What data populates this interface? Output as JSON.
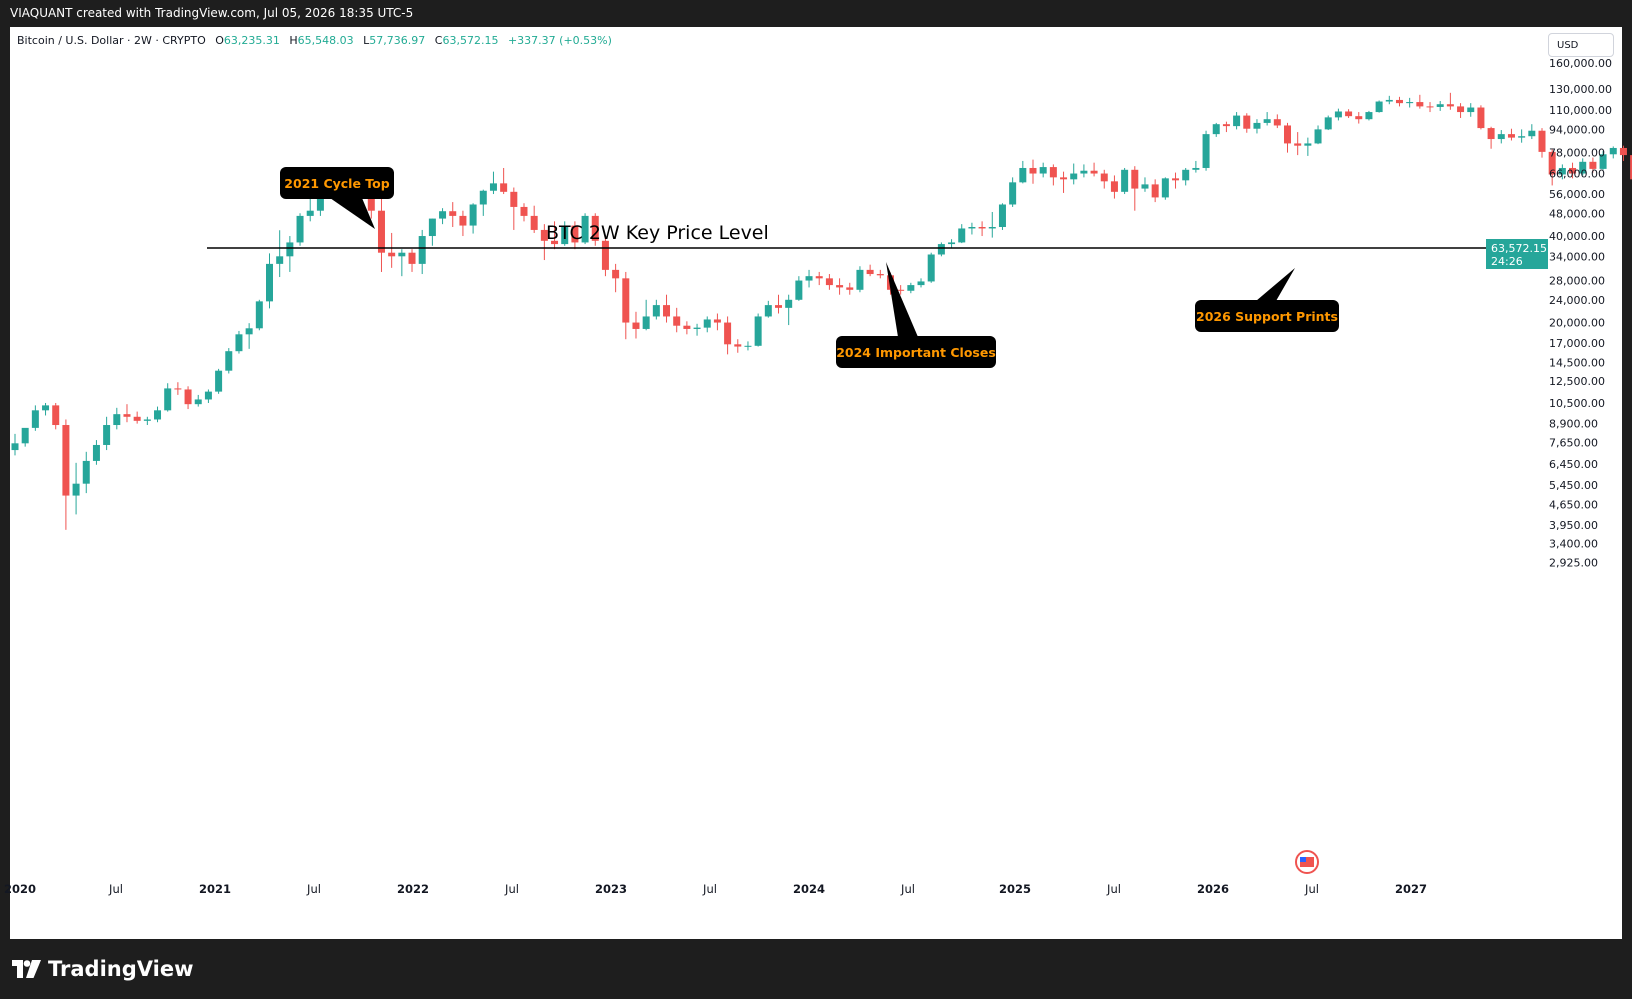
{
  "header": {
    "attribution": "VIAQUANT created with TradingView.com, Jul 05, 2026 18:35 UTC-5"
  },
  "legend": {
    "symbol": "Bitcoin / U.S. Dollar · 2W · CRYPTO",
    "o_label": "O",
    "o_value": "63,235.31",
    "h_label": "H",
    "h_value": "65,548.03",
    "l_label": "L",
    "l_value": "57,736.97",
    "c_label": "C",
    "c_value": "63,572.15",
    "change": "+337.37 (+0.53%)"
  },
  "currency": "USD",
  "price_axis": {
    "ticks": [
      "160,000.00",
      "130,000.00",
      "110,000.00",
      "94,000.00",
      "78,000.00",
      "66,000.00",
      "56,000.00",
      "48,000.00",
      "40,000.00",
      "34,000.00",
      "28,000.00",
      "24,000.00",
      "20,000.00",
      "17,000.00",
      "14,500.00",
      "12,500.00",
      "10,500.00",
      "8,900.00",
      "7,650.00",
      "6,450.00",
      "5,450.00",
      "4,650.00",
      "3,950.00",
      "3,400.00",
      "2,925.00"
    ],
    "last_price": "63,572.15",
    "countdown": "24:26"
  },
  "time_axis": {
    "ticks": [
      "2020",
      "Jul",
      "2021",
      "Jul",
      "2022",
      "Jul",
      "2023",
      "Jul",
      "2024",
      "Jul",
      "2025",
      "Jul",
      "2026",
      "Jul",
      "2027"
    ]
  },
  "annotations": {
    "key_level": "BTC 2W Key Price Level",
    "cycle_top": "2021 Cycle Top",
    "important_closes": "2024 Important Closes",
    "support_prints": "2026 Support Prints"
  },
  "colors": {
    "up": "#26a69a",
    "down": "#ef5350",
    "callout_bg": "#000000",
    "callout_text": "#ff9800",
    "price_tag": "#26a69a"
  },
  "brand": {
    "name": "TradingView"
  },
  "chart_data": {
    "type": "candlestick",
    "scale": "log",
    "x_unit": "two-week bars starting 2020-01-01",
    "key_level": 63000,
    "series": [
      {
        "o": 7200,
        "h": 8200,
        "l": 6900,
        "c": 7600
      },
      {
        "o": 7600,
        "h": 8500,
        "l": 7400,
        "c": 8600
      },
      {
        "o": 8600,
        "h": 10300,
        "l": 8400,
        "c": 9900
      },
      {
        "o": 9900,
        "h": 10500,
        "l": 9500,
        "c": 10300
      },
      {
        "o": 10300,
        "h": 10500,
        "l": 8500,
        "c": 8800
      },
      {
        "o": 8800,
        "h": 9200,
        "l": 3800,
        "c": 5000
      },
      {
        "o": 5000,
        "h": 6500,
        "l": 4300,
        "c": 5500
      },
      {
        "o": 5500,
        "h": 7100,
        "l": 5100,
        "c": 6600
      },
      {
        "o": 6600,
        "h": 7800,
        "l": 6400,
        "c": 7500
      },
      {
        "o": 7500,
        "h": 9400,
        "l": 7200,
        "c": 8800
      },
      {
        "o": 8800,
        "h": 10100,
        "l": 8500,
        "c": 9600
      },
      {
        "o": 9600,
        "h": 10400,
        "l": 9000,
        "c": 9400
      },
      {
        "o": 9400,
        "h": 9800,
        "l": 8900,
        "c": 9100
      },
      {
        "o": 9100,
        "h": 9400,
        "l": 8800,
        "c": 9200
      },
      {
        "o": 9200,
        "h": 10200,
        "l": 9000,
        "c": 9900
      },
      {
        "o": 9900,
        "h": 12300,
        "l": 9800,
        "c": 11800
      },
      {
        "o": 11800,
        "h": 12400,
        "l": 11200,
        "c": 11700
      },
      {
        "o": 11700,
        "h": 12000,
        "l": 10000,
        "c": 10400
      },
      {
        "o": 10400,
        "h": 11200,
        "l": 10200,
        "c": 10800
      },
      {
        "o": 10800,
        "h": 11700,
        "l": 10500,
        "c": 11500
      },
      {
        "o": 11500,
        "h": 13800,
        "l": 11300,
        "c": 13600
      },
      {
        "o": 13600,
        "h": 16300,
        "l": 13300,
        "c": 15900
      },
      {
        "o": 15900,
        "h": 18700,
        "l": 15600,
        "c": 18200
      },
      {
        "o": 18200,
        "h": 19900,
        "l": 16200,
        "c": 19100
      },
      {
        "o": 19100,
        "h": 24000,
        "l": 18800,
        "c": 23700
      },
      {
        "o": 23700,
        "h": 34800,
        "l": 22400,
        "c": 32000
      },
      {
        "o": 32000,
        "h": 41900,
        "l": 28800,
        "c": 34000
      },
      {
        "o": 34000,
        "h": 40000,
        "l": 30000,
        "c": 38000
      },
      {
        "o": 38000,
        "h": 48000,
        "l": 37000,
        "c": 47000
      },
      {
        "o": 47000,
        "h": 58300,
        "l": 45000,
        "c": 49000
      },
      {
        "o": 49000,
        "h": 58000,
        "l": 47000,
        "c": 57000
      },
      {
        "o": 57000,
        "h": 61700,
        "l": 54000,
        "c": 59000
      },
      {
        "o": 59000,
        "h": 61000,
        "l": 53000,
        "c": 56500
      },
      {
        "o": 56500,
        "h": 61000,
        "l": 55000,
        "c": 59000
      },
      {
        "o": 59000,
        "h": 64800,
        "l": 47000,
        "c": 57000
      },
      {
        "o": 57000,
        "h": 59000,
        "l": 46000,
        "c": 49000
      },
      {
        "o": 49000,
        "h": 59000,
        "l": 30000,
        "c": 35000
      },
      {
        "o": 35000,
        "h": 41000,
        "l": 31000,
        "c": 34000
      },
      {
        "o": 34000,
        "h": 36000,
        "l": 29000,
        "c": 35000
      },
      {
        "o": 35000,
        "h": 36000,
        "l": 30000,
        "c": 32000
      },
      {
        "o": 32000,
        "h": 42000,
        "l": 29500,
        "c": 40000
      },
      {
        "o": 40000,
        "h": 46000,
        "l": 37000,
        "c": 46000
      },
      {
        "o": 46000,
        "h": 50000,
        "l": 44000,
        "c": 48800
      },
      {
        "o": 48800,
        "h": 52500,
        "l": 43000,
        "c": 47000
      },
      {
        "o": 47000,
        "h": 49000,
        "l": 40000,
        "c": 43500
      },
      {
        "o": 43500,
        "h": 52000,
        "l": 40800,
        "c": 51500
      },
      {
        "o": 51500,
        "h": 58000,
        "l": 47000,
        "c": 57500
      },
      {
        "o": 57500,
        "h": 67000,
        "l": 56000,
        "c": 61000
      },
      {
        "o": 61000,
        "h": 69000,
        "l": 56000,
        "c": 57000
      },
      {
        "o": 57000,
        "h": 59000,
        "l": 42000,
        "c": 50500
      },
      {
        "o": 50500,
        "h": 52000,
        "l": 45000,
        "c": 47000
      },
      {
        "o": 47000,
        "h": 51000,
        "l": 41000,
        "c": 42000
      },
      {
        "o": 42000,
        "h": 44000,
        "l": 33000,
        "c": 38500
      },
      {
        "o": 38500,
        "h": 45000,
        "l": 36000,
        "c": 37500
      },
      {
        "o": 37500,
        "h": 45000,
        "l": 37000,
        "c": 43500
      },
      {
        "o": 43500,
        "h": 45000,
        "l": 36000,
        "c": 38000
      },
      {
        "o": 38000,
        "h": 48000,
        "l": 37500,
        "c": 47000
      },
      {
        "o": 47000,
        "h": 48000,
        "l": 37000,
        "c": 38500
      },
      {
        "o": 38500,
        "h": 40000,
        "l": 29000,
        "c": 30500
      },
      {
        "o": 30500,
        "h": 32000,
        "l": 25500,
        "c": 28500
      },
      {
        "o": 28500,
        "h": 30000,
        "l": 17500,
        "c": 20000
      },
      {
        "o": 20000,
        "h": 21800,
        "l": 17600,
        "c": 19000
      },
      {
        "o": 19000,
        "h": 24000,
        "l": 18800,
        "c": 21000
      },
      {
        "o": 21000,
        "h": 24000,
        "l": 20500,
        "c": 23000
      },
      {
        "o": 23000,
        "h": 25000,
        "l": 20000,
        "c": 21000
      },
      {
        "o": 21000,
        "h": 22500,
        "l": 18500,
        "c": 19500
      },
      {
        "o": 19500,
        "h": 20200,
        "l": 18200,
        "c": 19000
      },
      {
        "o": 19000,
        "h": 19800,
        "l": 18000,
        "c": 19200
      },
      {
        "o": 19200,
        "h": 21000,
        "l": 18500,
        "c": 20500
      },
      {
        "o": 20500,
        "h": 21500,
        "l": 18800,
        "c": 20000
      },
      {
        "o": 20000,
        "h": 21000,
        "l": 15500,
        "c": 16800
      },
      {
        "o": 16800,
        "h": 17500,
        "l": 15700,
        "c": 16500
      },
      {
        "o": 16500,
        "h": 17200,
        "l": 16000,
        "c": 16600
      },
      {
        "o": 16600,
        "h": 21500,
        "l": 16500,
        "c": 21000
      },
      {
        "o": 21000,
        "h": 23800,
        "l": 20800,
        "c": 23000
      },
      {
        "o": 23000,
        "h": 25000,
        "l": 21500,
        "c": 22500
      },
      {
        "o": 22500,
        "h": 25000,
        "l": 19600,
        "c": 24000
      },
      {
        "o": 24000,
        "h": 29000,
        "l": 23800,
        "c": 28000
      },
      {
        "o": 28000,
        "h": 30500,
        "l": 26500,
        "c": 29000
      },
      {
        "o": 29000,
        "h": 30000,
        "l": 27000,
        "c": 28500
      },
      {
        "o": 28500,
        "h": 29500,
        "l": 26000,
        "c": 27000
      },
      {
        "o": 27000,
        "h": 28500,
        "l": 25000,
        "c": 26500
      },
      {
        "o": 26500,
        "h": 27500,
        "l": 25000,
        "c": 26000
      },
      {
        "o": 26000,
        "h": 31400,
        "l": 25500,
        "c": 30500
      },
      {
        "o": 30500,
        "h": 31800,
        "l": 29000,
        "c": 29500
      },
      {
        "o": 29500,
        "h": 30500,
        "l": 28500,
        "c": 29200
      },
      {
        "o": 29200,
        "h": 29800,
        "l": 25000,
        "c": 26000
      },
      {
        "o": 26000,
        "h": 27000,
        "l": 25000,
        "c": 25800
      },
      {
        "o": 25800,
        "h": 27500,
        "l": 25300,
        "c": 27000
      },
      {
        "o": 27000,
        "h": 28500,
        "l": 26500,
        "c": 27800
      },
      {
        "o": 27800,
        "h": 35000,
        "l": 27500,
        "c": 34500
      },
      {
        "o": 34500,
        "h": 38000,
        "l": 34000,
        "c": 37500
      },
      {
        "o": 37500,
        "h": 39000,
        "l": 36500,
        "c": 38000
      },
      {
        "o": 38000,
        "h": 44000,
        "l": 37800,
        "c": 42500
      },
      {
        "o": 42500,
        "h": 44500,
        "l": 40500,
        "c": 43000
      },
      {
        "o": 43000,
        "h": 45000,
        "l": 40000,
        "c": 42500
      },
      {
        "o": 42500,
        "h": 48500,
        "l": 39500,
        "c": 43000
      },
      {
        "o": 43000,
        "h": 52000,
        "l": 42000,
        "c": 51500
      },
      {
        "o": 51500,
        "h": 64000,
        "l": 50500,
        "c": 61500
      },
      {
        "o": 61500,
        "h": 73000,
        "l": 61000,
        "c": 69000
      },
      {
        "o": 69000,
        "h": 73800,
        "l": 60800,
        "c": 66000
      },
      {
        "o": 66000,
        "h": 72000,
        "l": 64000,
        "c": 69500
      },
      {
        "o": 69500,
        "h": 71000,
        "l": 60000,
        "c": 64000
      },
      {
        "o": 64000,
        "h": 67000,
        "l": 56500,
        "c": 63000
      },
      {
        "o": 63000,
        "h": 71500,
        "l": 60500,
        "c": 66000
      },
      {
        "o": 66000,
        "h": 71000,
        "l": 64000,
        "c": 67500
      },
      {
        "o": 67500,
        "h": 72000,
        "l": 64500,
        "c": 66000
      },
      {
        "o": 66000,
        "h": 68000,
        "l": 58500,
        "c": 62000
      },
      {
        "o": 62000,
        "h": 65000,
        "l": 54000,
        "c": 57000
      },
      {
        "o": 57000,
        "h": 69000,
        "l": 56000,
        "c": 68000
      },
      {
        "o": 68000,
        "h": 70000,
        "l": 49000,
        "c": 58500
      },
      {
        "o": 58500,
        "h": 64000,
        "l": 57000,
        "c": 60500
      },
      {
        "o": 60500,
        "h": 63000,
        "l": 52500,
        "c": 54500
      },
      {
        "o": 54500,
        "h": 64000,
        "l": 53500,
        "c": 63500
      },
      {
        "o": 63500,
        "h": 66500,
        "l": 58500,
        "c": 62500
      },
      {
        "o": 62500,
        "h": 69000,
        "l": 60000,
        "c": 68000
      },
      {
        "o": 68000,
        "h": 73000,
        "l": 66500,
        "c": 69000
      },
      {
        "o": 69000,
        "h": 93000,
        "l": 67500,
        "c": 90500
      },
      {
        "o": 90500,
        "h": 99000,
        "l": 88500,
        "c": 98000
      },
      {
        "o": 98000,
        "h": 100000,
        "l": 92000,
        "c": 96500
      },
      {
        "o": 96500,
        "h": 108000,
        "l": 94000,
        "c": 105000
      },
      {
        "o": 105000,
        "h": 107000,
        "l": 91500,
        "c": 94500
      },
      {
        "o": 94500,
        "h": 102000,
        "l": 91000,
        "c": 99000
      },
      {
        "o": 99000,
        "h": 108000,
        "l": 97000,
        "c": 102000
      },
      {
        "o": 102000,
        "h": 106000,
        "l": 95000,
        "c": 97000
      },
      {
        "o": 97000,
        "h": 99000,
        "l": 78000,
        "c": 84000
      },
      {
        "o": 84000,
        "h": 92000,
        "l": 76500,
        "c": 82500
      },
      {
        "o": 82500,
        "h": 88000,
        "l": 76000,
        "c": 84000
      },
      {
        "o": 84000,
        "h": 97000,
        "l": 83500,
        "c": 94000
      },
      {
        "o": 94000,
        "h": 105000,
        "l": 93500,
        "c": 103500
      },
      {
        "o": 103500,
        "h": 111000,
        "l": 101000,
        "c": 108500
      },
      {
        "o": 108500,
        "h": 110500,
        "l": 103000,
        "c": 104500
      },
      {
        "o": 104500,
        "h": 108000,
        "l": 98500,
        "c": 102000
      },
      {
        "o": 102000,
        "h": 109000,
        "l": 101000,
        "c": 108000
      },
      {
        "o": 108000,
        "h": 118500,
        "l": 107500,
        "c": 117500
      },
      {
        "o": 117500,
        "h": 123000,
        "l": 115000,
        "c": 119000
      },
      {
        "o": 119000,
        "h": 122000,
        "l": 113000,
        "c": 116000
      },
      {
        "o": 116000,
        "h": 121000,
        "l": 112000,
        "c": 117000
      },
      {
        "o": 117000,
        "h": 124000,
        "l": 111000,
        "c": 113000
      },
      {
        "o": 113000,
        "h": 117000,
        "l": 108000,
        "c": 112500
      },
      {
        "o": 112500,
        "h": 118000,
        "l": 109000,
        "c": 115000
      },
      {
        "o": 115000,
        "h": 126000,
        "l": 110000,
        "c": 113000
      },
      {
        "o": 113000,
        "h": 116000,
        "l": 103000,
        "c": 108000
      },
      {
        "o": 108000,
        "h": 116000,
        "l": 104000,
        "c": 112000
      },
      {
        "o": 112000,
        "h": 114000,
        "l": 94000,
        "c": 95000
      },
      {
        "o": 95000,
        "h": 96000,
        "l": 80500,
        "c": 87000
      },
      {
        "o": 87000,
        "h": 93500,
        "l": 84000,
        "c": 90500
      },
      {
        "o": 90500,
        "h": 94500,
        "l": 86000,
        "c": 88000
      },
      {
        "o": 88000,
        "h": 94000,
        "l": 84500,
        "c": 89000
      },
      {
        "o": 89000,
        "h": 98000,
        "l": 87000,
        "c": 93000
      },
      {
        "o": 93000,
        "h": 95000,
        "l": 75000,
        "c": 78500
      },
      {
        "o": 78500,
        "h": 80000,
        "l": 60000,
        "c": 65500
      },
      {
        "o": 65500,
        "h": 71000,
        "l": 63000,
        "c": 69000
      },
      {
        "o": 69000,
        "h": 72000,
        "l": 63500,
        "c": 66000
      },
      {
        "o": 66000,
        "h": 74500,
        "l": 65000,
        "c": 72500
      },
      {
        "o": 72500,
        "h": 75000,
        "l": 66500,
        "c": 68500
      },
      {
        "o": 68500,
        "h": 79000,
        "l": 68000,
        "c": 77000
      },
      {
        "o": 77000,
        "h": 82000,
        "l": 74500,
        "c": 81000
      },
      {
        "o": 81000,
        "h": 82500,
        "l": 73000,
        "c": 76500
      },
      {
        "o": 76500,
        "h": 79000,
        "l": 60500,
        "c": 63000
      },
      {
        "o": 63000,
        "h": 66500,
        "l": 61500,
        "c": 63235
      },
      {
        "o": 63235.31,
        "h": 65548.03,
        "l": 57736.97,
        "c": 63572.15
      }
    ]
  }
}
